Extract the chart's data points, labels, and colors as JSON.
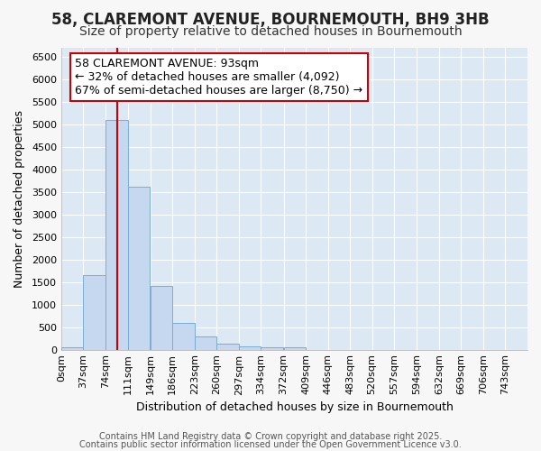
{
  "title1": "58, CLAREMONT AVENUE, BOURNEMOUTH, BH9 3HB",
  "title2": "Size of property relative to detached houses in Bournemouth",
  "xlabel": "Distribution of detached houses by size in Bournemouth",
  "ylabel": "Number of detached properties",
  "bin_labels": [
    "0sqm",
    "37sqm",
    "74sqm",
    "111sqm",
    "149sqm",
    "186sqm",
    "223sqm",
    "260sqm",
    "297sqm",
    "334sqm",
    "372sqm",
    "409sqm",
    "446sqm",
    "483sqm",
    "520sqm",
    "557sqm",
    "594sqm",
    "632sqm",
    "669sqm",
    "706sqm",
    "743sqm"
  ],
  "bin_edges": [
    0,
    37,
    74,
    111,
    149,
    186,
    223,
    260,
    297,
    334,
    372,
    409,
    446,
    483,
    520,
    557,
    594,
    632,
    669,
    706,
    743
  ],
  "bar_heights": [
    60,
    1650,
    5100,
    3620,
    1420,
    600,
    300,
    130,
    80,
    55,
    50,
    0,
    0,
    0,
    0,
    0,
    0,
    0,
    0,
    0
  ],
  "bar_color": "#c5d8f0",
  "bar_edge_color": "#7aadd4",
  "property_size": 93,
  "vline_color": "#cc0000",
  "annotation_line1": "58 CLAREMONT AVENUE: 93sqm",
  "annotation_line2": "← 32% of detached houses are smaller (4,092)",
  "annotation_line3": "67% of semi-detached houses are larger (8,750) →",
  "annotation_box_color": "#ffffff",
  "annotation_box_edge_color": "#cc0000",
  "ylim": [
    0,
    6700
  ],
  "yticks": [
    0,
    500,
    1000,
    1500,
    2000,
    2500,
    3000,
    3500,
    4000,
    4500,
    5000,
    5500,
    6000,
    6500
  ],
  "background_color": "#dde8f5",
  "fig_background": "#f7f7f7",
  "footer1": "Contains HM Land Registry data © Crown copyright and database right 2025.",
  "footer2": "Contains public sector information licensed under the Open Government Licence v3.0.",
  "title1_fontsize": 12,
  "title2_fontsize": 10,
  "xlabel_fontsize": 9,
  "ylabel_fontsize": 9,
  "tick_fontsize": 8,
  "annotation_fontsize": 9,
  "footer_fontsize": 7
}
